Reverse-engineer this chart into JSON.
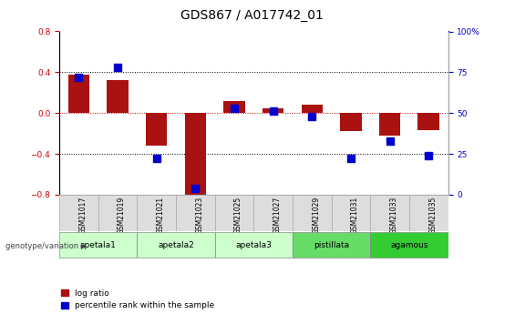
{
  "title": "GDS867 / A017742_01",
  "samples": [
    "GSM21017",
    "GSM21019",
    "GSM21021",
    "GSM21023",
    "GSM21025",
    "GSM21027",
    "GSM21029",
    "GSM21031",
    "GSM21033",
    "GSM21035"
  ],
  "log_ratio": [
    0.38,
    0.32,
    -0.32,
    -0.82,
    0.12,
    0.05,
    0.08,
    -0.18,
    -0.22,
    -0.17
  ],
  "percentile_rank": [
    72,
    78,
    22,
    4,
    53,
    51,
    48,
    22,
    33,
    24
  ],
  "ylim_left": [
    -0.8,
    0.8
  ],
  "ylim_right": [
    0,
    100
  ],
  "yticks_left": [
    -0.8,
    -0.4,
    0.0,
    0.4,
    0.8
  ],
  "yticks_right": [
    0,
    25,
    50,
    75,
    100
  ],
  "group_defs": [
    {
      "label": "apetala1",
      "start": 0,
      "end": 1,
      "color": "#ccffcc"
    },
    {
      "label": "apetala2",
      "start": 2,
      "end": 3,
      "color": "#ccffcc"
    },
    {
      "label": "apetala3",
      "start": 4,
      "end": 5,
      "color": "#ccffcc"
    },
    {
      "label": "pistillata",
      "start": 6,
      "end": 7,
      "color": "#66dd66"
    },
    {
      "label": "agamous",
      "start": 8,
      "end": 9,
      "color": "#33cc33"
    }
  ],
  "bar_color": "#aa1111",
  "dot_color": "#0000cc",
  "bar_width": 0.55,
  "dot_size": 28,
  "grid_color": "#000000",
  "zero_line_color": "#cc0000",
  "background_color": "#ffffff",
  "title_fontsize": 10,
  "tick_fontsize": 6.5,
  "label_fontsize": 7
}
